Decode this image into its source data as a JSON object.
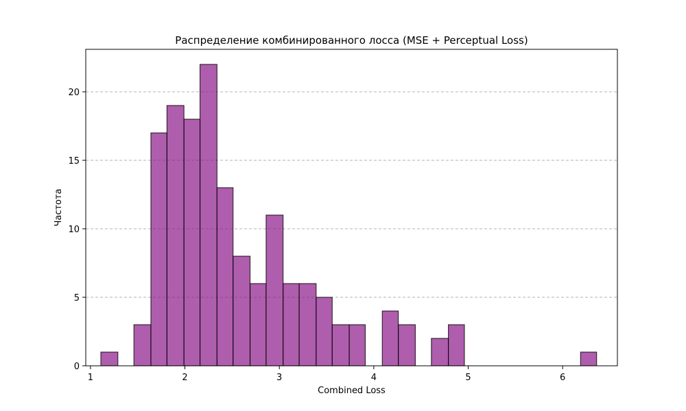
{
  "chart_data": {
    "type": "bar",
    "title": "Распределение комбинированного лосса (MSE + Perceptual Loss)",
    "xlabel": "Combined Loss",
    "ylabel": "Частота",
    "xlim": [
      0.95,
      6.58
    ],
    "ylim": [
      0,
      23.1
    ],
    "x_ticks": [
      1,
      2,
      3,
      4,
      5,
      6
    ],
    "y_ticks": [
      0,
      5,
      10,
      15,
      20
    ],
    "grid": {
      "axis": "y",
      "style": "dashed"
    },
    "bar_color": "#8b1a89",
    "edge_color": "#000000",
    "bins": [
      {
        "x0": 1.11,
        "x1": 1.29,
        "count": 1
      },
      {
        "x0": 1.29,
        "x1": 1.46,
        "count": 0
      },
      {
        "x0": 1.46,
        "x1": 1.64,
        "count": 3
      },
      {
        "x0": 1.64,
        "x1": 1.81,
        "count": 17
      },
      {
        "x0": 1.81,
        "x1": 1.99,
        "count": 19
      },
      {
        "x0": 1.99,
        "x1": 2.16,
        "count": 18
      },
      {
        "x0": 2.16,
        "x1": 2.34,
        "count": 22
      },
      {
        "x0": 2.34,
        "x1": 2.51,
        "count": 13
      },
      {
        "x0": 2.51,
        "x1": 2.69,
        "count": 8
      },
      {
        "x0": 2.69,
        "x1": 2.86,
        "count": 6
      },
      {
        "x0": 2.86,
        "x1": 3.04,
        "count": 11
      },
      {
        "x0": 3.04,
        "x1": 3.21,
        "count": 6
      },
      {
        "x0": 3.21,
        "x1": 3.39,
        "count": 6
      },
      {
        "x0": 3.39,
        "x1": 3.56,
        "count": 5
      },
      {
        "x0": 3.56,
        "x1": 3.74,
        "count": 3
      },
      {
        "x0": 3.74,
        "x1": 3.91,
        "count": 3
      },
      {
        "x0": 3.91,
        "x1": 4.09,
        "count": 0
      },
      {
        "x0": 4.09,
        "x1": 4.26,
        "count": 4
      },
      {
        "x0": 4.26,
        "x1": 4.44,
        "count": 3
      },
      {
        "x0": 4.44,
        "x1": 4.61,
        "count": 0
      },
      {
        "x0": 4.61,
        "x1": 4.79,
        "count": 2
      },
      {
        "x0": 4.79,
        "x1": 4.96,
        "count": 3
      },
      {
        "x0": 4.96,
        "x1": 5.14,
        "count": 0
      },
      {
        "x0": 5.14,
        "x1": 5.31,
        "count": 0
      },
      {
        "x0": 5.31,
        "x1": 5.49,
        "count": 0
      },
      {
        "x0": 5.49,
        "x1": 5.66,
        "count": 0
      },
      {
        "x0": 5.66,
        "x1": 5.84,
        "count": 0
      },
      {
        "x0": 5.84,
        "x1": 6.01,
        "count": 0
      },
      {
        "x0": 6.01,
        "x1": 6.19,
        "count": 0
      },
      {
        "x0": 6.19,
        "x1": 6.36,
        "count": 1
      }
    ]
  }
}
